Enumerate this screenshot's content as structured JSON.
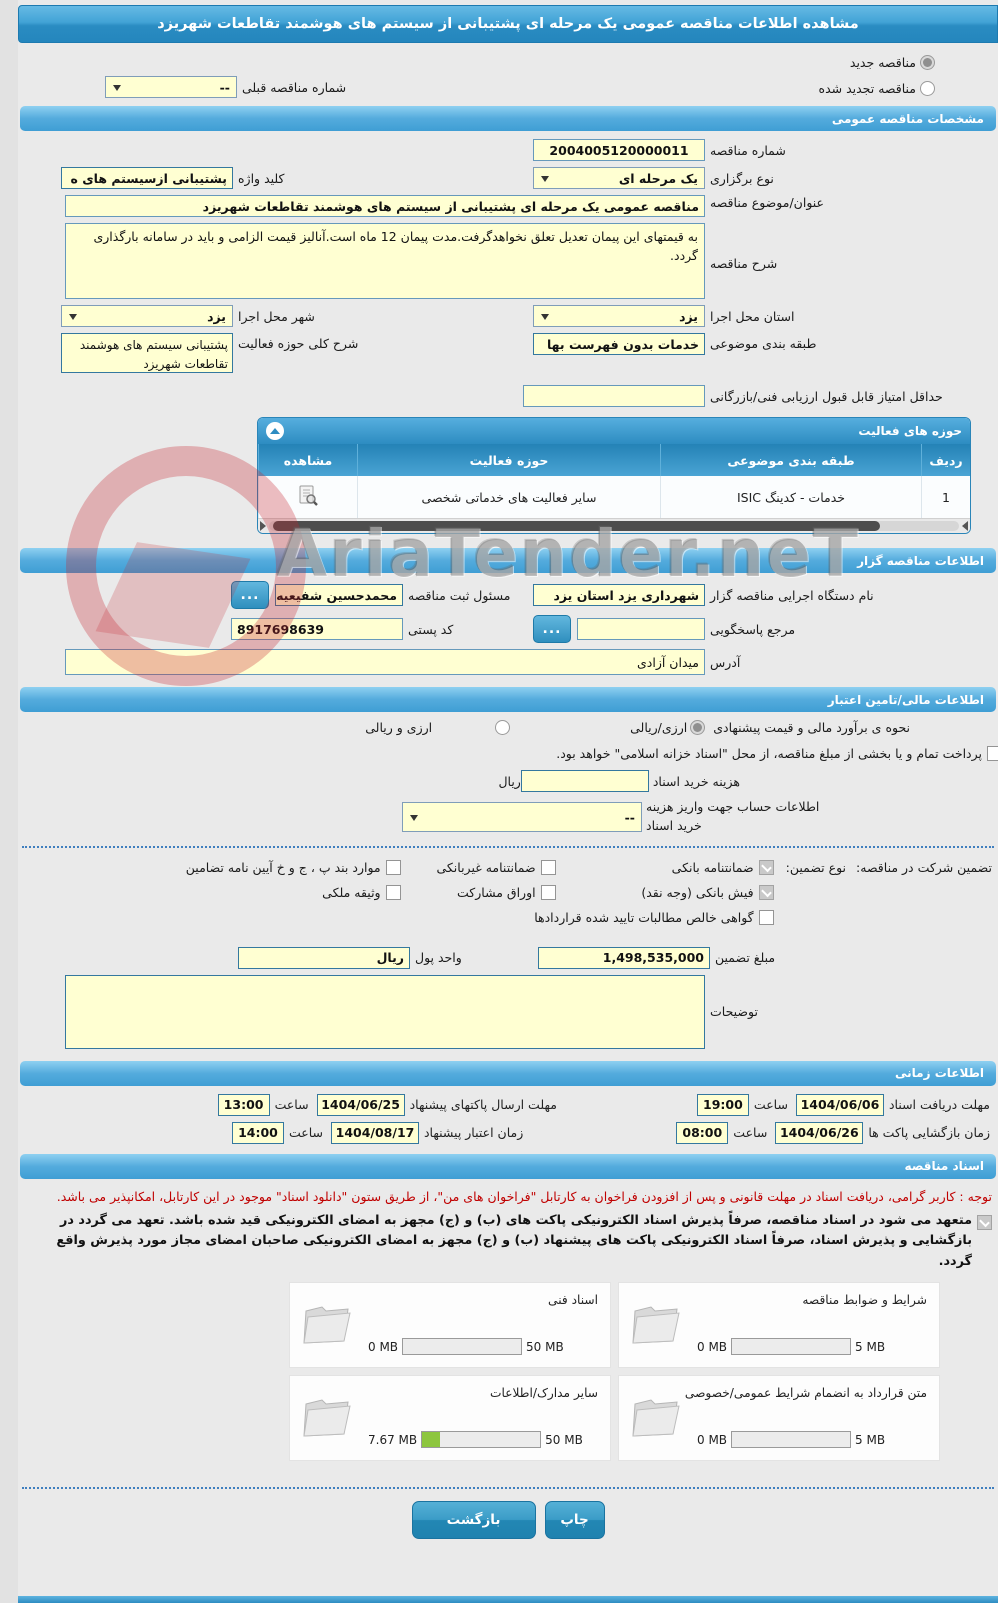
{
  "colors": {
    "accent": "#3b99cc",
    "field_bg": "#ffffd2",
    "notice_red": "#c00000",
    "progress_green": "#8dc63f"
  },
  "page": {
    "title": "مشاهده اطلاعات مناقصه عمومی یک مرحله ای پشتیبانی از سیستم های هوشمند تقاطعات شهریزد",
    "watermark": "AriaTender.neT"
  },
  "top": {
    "radio_new": "مناقصه جدید",
    "radio_renewed": "مناقصه تجدید شده",
    "prev_number_label": "شماره مناقصه قبلی",
    "prev_number_value": "--"
  },
  "specs": {
    "header": "مشخصات مناقصه عمومی",
    "number_label": "شماره مناقصه",
    "number_value": "2004005120000011",
    "type_label": "نوع برگزاری",
    "type_value": "یک مرحله ای",
    "keyword_label": "کلید واژه",
    "keyword_value": "پشتیبانی ازسیستم های ه",
    "subject_label": "عنوان/موضوع مناقصه",
    "subject_value": "مناقصه عمومی یک مرحله ای پشتیبانی از سیستم های هوشمند تقاطعات شهریزد",
    "desc_label": "شرح مناقصه",
    "desc_value": "به قیمتهای این پیمان تعدیل تعلق نخواهدگرفت.مدت پیمان 12 ماه است.آنالیز قیمت الزامی و باید در سامانه بارگذاری گردد.",
    "province_label": "استان محل اجرا",
    "province_value": "یزد",
    "city_label": "شهر محل اجرا",
    "city_value": "یزد",
    "category_label": "طبقه بندی موضوعی",
    "category_value": "خدمات بدون فهرست بها",
    "scope_label": "شرح کلی حوزه فعالیت",
    "scope_value": "پشتیبانی سیستم های هوشمند تقاطعات شهریزد",
    "min_score_label": "حداقل امتیاز قابل قبول ارزیابی فنی/بازرگانی"
  },
  "activity_table": {
    "header": "حوزه های فعالیت",
    "columns": [
      "ردیف",
      "طبقه بندی موضوعی",
      "حوزه فعالیت",
      "مشاهده"
    ],
    "rows": [
      {
        "index": "1",
        "category": "خدمات - کدینگ ISIC",
        "field": "سایر فعالیت های خدماتی شخصی"
      }
    ]
  },
  "organizer": {
    "header": "اطلاعات مناقصه گزار",
    "agency_label": "نام دستگاه اجرایی مناقصه گزار",
    "agency_value": "شهرداری یزد استان یزد",
    "registrar_label": "مسئول ثبت مناقصه",
    "registrar_value": "محمدحسین شفیعیه",
    "browse_label": "...",
    "contact_label": "مرجع پاسخگویی",
    "contact_value": "",
    "postal_label": "کد پستی",
    "postal_value": "8917698639",
    "address_label": "آدرس",
    "address_value": "میدان آزادی"
  },
  "financial": {
    "header": "اطلاعات مالی/تامین اعتبار",
    "estimate_label": "نحوه ی برآورد مالی و قیمت پیشنهادی",
    "estimate_opt1": "ارزی/ریالی",
    "estimate_opt2": "ارزی و ریالی",
    "estimate_opt1_selected": true,
    "treasury_note": "پرداخت تمام و یا بخشی از مبلغ مناقصه، از محل \"اسناد خزانه اسلامی\" خواهد بود.",
    "doc_fee_label": "هزینه خرید اسناد",
    "doc_fee_unit": "ریال",
    "doc_fee_value": "",
    "account_label": "اطلاعات حساب جهت واریز هزینه خرید اسناد",
    "account_value": "--",
    "guarantee_title": "تضمین شرکت در مناقصه:",
    "guarantee_type_label": "نوع تضمین:",
    "guarantee_options": [
      {
        "label": "ضمانتنامه بانکی",
        "checked": true
      },
      {
        "label": "ضمانتنامه غیربانکی",
        "checked": false
      },
      {
        "label": "موارد بند پ ، ج و خ آیین نامه تضامین",
        "checked": false
      },
      {
        "label": "فیش بانکی (وجه نقد)",
        "checked": true
      },
      {
        "label": "اوراق مشارکت",
        "checked": false
      },
      {
        "label": "وثیقه ملکی",
        "checked": false
      },
      {
        "label": "گواهی خالص مطالبات تایید شده قراردادها",
        "checked": false
      }
    ],
    "amount_label": "مبلغ تضمین",
    "amount_value": "1,498,535,000",
    "currency_label": "واحد پول",
    "currency_value": "ریال",
    "notes_label": "توضیحات",
    "notes_value": ""
  },
  "timing": {
    "header": "اطلاعات زمانی",
    "hour_label": "ساعت",
    "items": [
      {
        "label": "مهلت دریافت اسناد",
        "date": "1404/06/06",
        "time": "19:00"
      },
      {
        "label": "مهلت ارسال پاکتهای پیشنهاد",
        "date": "1404/06/25",
        "time": "13:00"
      },
      {
        "label": "زمان بازگشایی پاکت ها",
        "date": "1404/06/26",
        "time": "08:00"
      },
      {
        "label": "زمان اعتبار پیشنهاد",
        "date": "1404/08/17",
        "time": "14:00"
      }
    ]
  },
  "documents": {
    "header": "اسناد مناقصه",
    "notice": "توجه : کاربر گرامی، دریافت اسناد در مهلت قانونی و پس از افزودن فراخوان به کارتابل \"فراخوان های من\"، از طریق ستون \"دانلود اسناد\" موجود در این کارتابل، امکانپذیر می باشد.",
    "commitment": "متعهد می شود در اسناد مناقصه، صرفاً پذیرش اسناد الکترونیکی پاکت های (ب) و (ج) مجهز به امضای الکترونیکی قید شده باشد. تعهد می گردد در بازگشایی و پذیرش اسناد، صرفاً اسناد الکترونیکی پاکت های پیشنهاد (ب) و (ج) مجهز به امضای الکترونیکی صاحبان امضای مجاز مورد پذیرش واقع گردد.",
    "commitment_checked": true,
    "uploads": [
      {
        "label": "شرایط و ضوابط مناقصه",
        "used": "0 MB",
        "max": "5 MB",
        "progress": 0
      },
      {
        "label": "اسناد فنی",
        "used": "0 MB",
        "max": "50 MB",
        "progress": 0
      },
      {
        "label": "متن قرارداد به انضمام شرایط عمومی/خصوصی",
        "used": "0 MB",
        "max": "5 MB",
        "progress": 0
      },
      {
        "label": "سایر مدارک/اطلاعات",
        "used": "7.67 MB",
        "max": "50 MB",
        "progress": 15
      }
    ]
  },
  "footer": {
    "print_label": "چاپ",
    "back_label": "بازگشت"
  }
}
